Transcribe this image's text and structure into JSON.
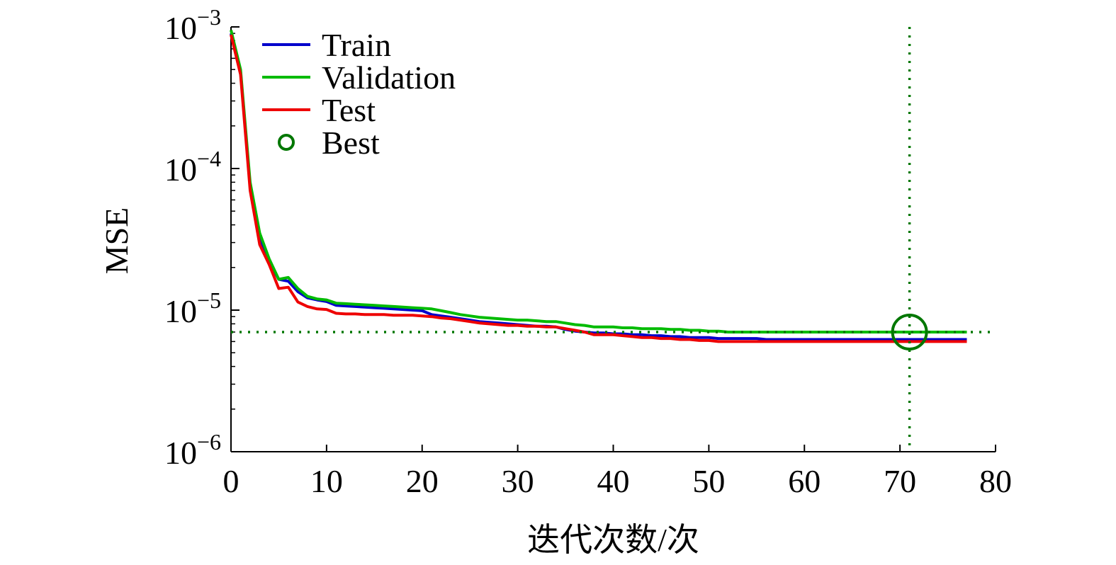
{
  "chart_data": {
    "type": "line",
    "title": "",
    "xlabel": "迭代次数/次",
    "ylabel": "MSE",
    "yscale": "log",
    "xlim": [
      0,
      80
    ],
    "ylim": [
      1e-06,
      0.001
    ],
    "grid": false,
    "legend_position": "top-left",
    "x_ticks": [
      0,
      10,
      20,
      30,
      40,
      50,
      60,
      70,
      80
    ],
    "x_tick_labels": [
      "0",
      "10",
      "20",
      "30",
      "40",
      "50",
      "60",
      "70",
      "80"
    ],
    "y_ticks": [
      1e-06,
      1e-05,
      0.0001,
      0.001
    ],
    "y_tick_labels": [
      {
        "base": "10",
        "exp": "−6"
      },
      {
        "base": "10",
        "exp": "−5"
      },
      {
        "base": "10",
        "exp": "−4"
      },
      {
        "base": "10",
        "exp": "−3"
      }
    ],
    "x": [
      0,
      1,
      2,
      3,
      4,
      5,
      6,
      7,
      8,
      9,
      10,
      11,
      12,
      13,
      14,
      15,
      16,
      17,
      18,
      19,
      20,
      21,
      22,
      23,
      24,
      25,
      26,
      27,
      28,
      29,
      30,
      31,
      32,
      33,
      34,
      35,
      36,
      37,
      38,
      39,
      40,
      41,
      42,
      43,
      44,
      45,
      46,
      47,
      48,
      49,
      50,
      51,
      52,
      53,
      54,
      55,
      56,
      57,
      58,
      59,
      60,
      61,
      62,
      63,
      64,
      65,
      66,
      67,
      68,
      69,
      70,
      71,
      72,
      73,
      74,
      75,
      76,
      77
    ],
    "series": [
      {
        "name": "Train",
        "color": "#0000cc",
        "values": [
          0.0009,
          0.00048,
          7.5e-05,
          3.3e-05,
          2.2e-05,
          1.65e-05,
          1.6e-05,
          1.35e-05,
          1.22e-05,
          1.18e-05,
          1.15e-05,
          1.08e-05,
          1.07e-05,
          1.06e-05,
          1.05e-05,
          1.04e-05,
          1.03e-05,
          1.02e-05,
          1.01e-05,
          1e-05,
          9.9e-06,
          9.3e-06,
          9.1e-06,
          8.9e-06,
          8.7e-06,
          8.5e-06,
          8.3e-06,
          8.2e-06,
          8.1e-06,
          8e-06,
          7.9e-06,
          7.8e-06,
          7.7e-06,
          7.7e-06,
          7.6e-06,
          7.3e-06,
          7.1e-06,
          7e-06,
          6.9e-06,
          6.9e-06,
          6.8e-06,
          6.8e-06,
          6.7e-06,
          6.7e-06,
          6.6e-06,
          6.6e-06,
          6.5e-06,
          6.5e-06,
          6.4e-06,
          6.4e-06,
          6.4e-06,
          6.3e-06,
          6.3e-06,
          6.3e-06,
          6.3e-06,
          6.3e-06,
          6.2e-06,
          6.2e-06,
          6.2e-06,
          6.2e-06,
          6.2e-06,
          6.2e-06,
          6.2e-06,
          6.2e-06,
          6.2e-06,
          6.2e-06,
          6.2e-06,
          6.2e-06,
          6.2e-06,
          6.2e-06,
          6.2e-06,
          6.2e-06,
          6.2e-06,
          6.2e-06,
          6.2e-06,
          6.2e-06,
          6.2e-06,
          6.2e-06
        ]
      },
      {
        "name": "Validation",
        "color": "#00bb00",
        "values": [
          0.00095,
          0.0005,
          8e-05,
          3.5e-05,
          2.3e-05,
          1.65e-05,
          1.7e-05,
          1.42e-05,
          1.25e-05,
          1.2e-05,
          1.18e-05,
          1.12e-05,
          1.11e-05,
          1.1e-05,
          1.09e-05,
          1.08e-05,
          1.07e-05,
          1.06e-05,
          1.05e-05,
          1.04e-05,
          1.03e-05,
          1.02e-05,
          9.9e-06,
          9.6e-06,
          9.3e-06,
          9.1e-06,
          8.9e-06,
          8.8e-06,
          8.7e-06,
          8.6e-06,
          8.5e-06,
          8.5e-06,
          8.4e-06,
          8.3e-06,
          8.3e-06,
          8.1e-06,
          7.9e-06,
          7.8e-06,
          7.6e-06,
          7.6e-06,
          7.6e-06,
          7.5e-06,
          7.5e-06,
          7.4e-06,
          7.4e-06,
          7.4e-06,
          7.3e-06,
          7.3e-06,
          7.2e-06,
          7.2e-06,
          7.1e-06,
          7.1e-06,
          7e-06,
          7e-06,
          7e-06,
          7e-06,
          7e-06,
          7e-06,
          7e-06,
          7e-06,
          7e-06,
          7e-06,
          7e-06,
          7e-06,
          7e-06,
          7e-06,
          7e-06,
          7e-06,
          7e-06,
          7e-06,
          7e-06,
          7e-06,
          7e-06,
          7e-06,
          7e-06,
          7e-06,
          7e-06,
          7e-06
        ]
      },
      {
        "name": "Test",
        "color": "#ee0000",
        "values": [
          0.00088,
          0.00046,
          7e-05,
          2.9e-05,
          2.1e-05,
          1.42e-05,
          1.45e-05,
          1.14e-05,
          1.06e-05,
          1.02e-05,
          1.01e-05,
          9.5e-06,
          9.4e-06,
          9.4e-06,
          9.3e-06,
          9.3e-06,
          9.3e-06,
          9.2e-06,
          9.2e-06,
          9.2e-06,
          9.1e-06,
          9e-06,
          8.8e-06,
          8.7e-06,
          8.5e-06,
          8.3e-06,
          8.1e-06,
          8e-06,
          7.9e-06,
          7.8e-06,
          7.8e-06,
          7.7e-06,
          7.7e-06,
          7.6e-06,
          7.6e-06,
          7.4e-06,
          7.2e-06,
          7e-06,
          6.7e-06,
          6.7e-06,
          6.7e-06,
          6.6e-06,
          6.5e-06,
          6.4e-06,
          6.4e-06,
          6.3e-06,
          6.3e-06,
          6.2e-06,
          6.2e-06,
          6.1e-06,
          6.1e-06,
          6e-06,
          6e-06,
          6e-06,
          6e-06,
          6e-06,
          6e-06,
          6e-06,
          6e-06,
          6e-06,
          6e-06,
          6e-06,
          6e-06,
          6e-06,
          6e-06,
          6e-06,
          6e-06,
          6e-06,
          6e-06,
          6e-06,
          6e-06,
          6e-06,
          6e-06,
          6e-06,
          6e-06,
          6e-06,
          6e-06,
          6e-06
        ]
      }
    ],
    "best": {
      "name": "Best",
      "color": "#007700",
      "epoch": 71,
      "value": 7e-06
    }
  }
}
